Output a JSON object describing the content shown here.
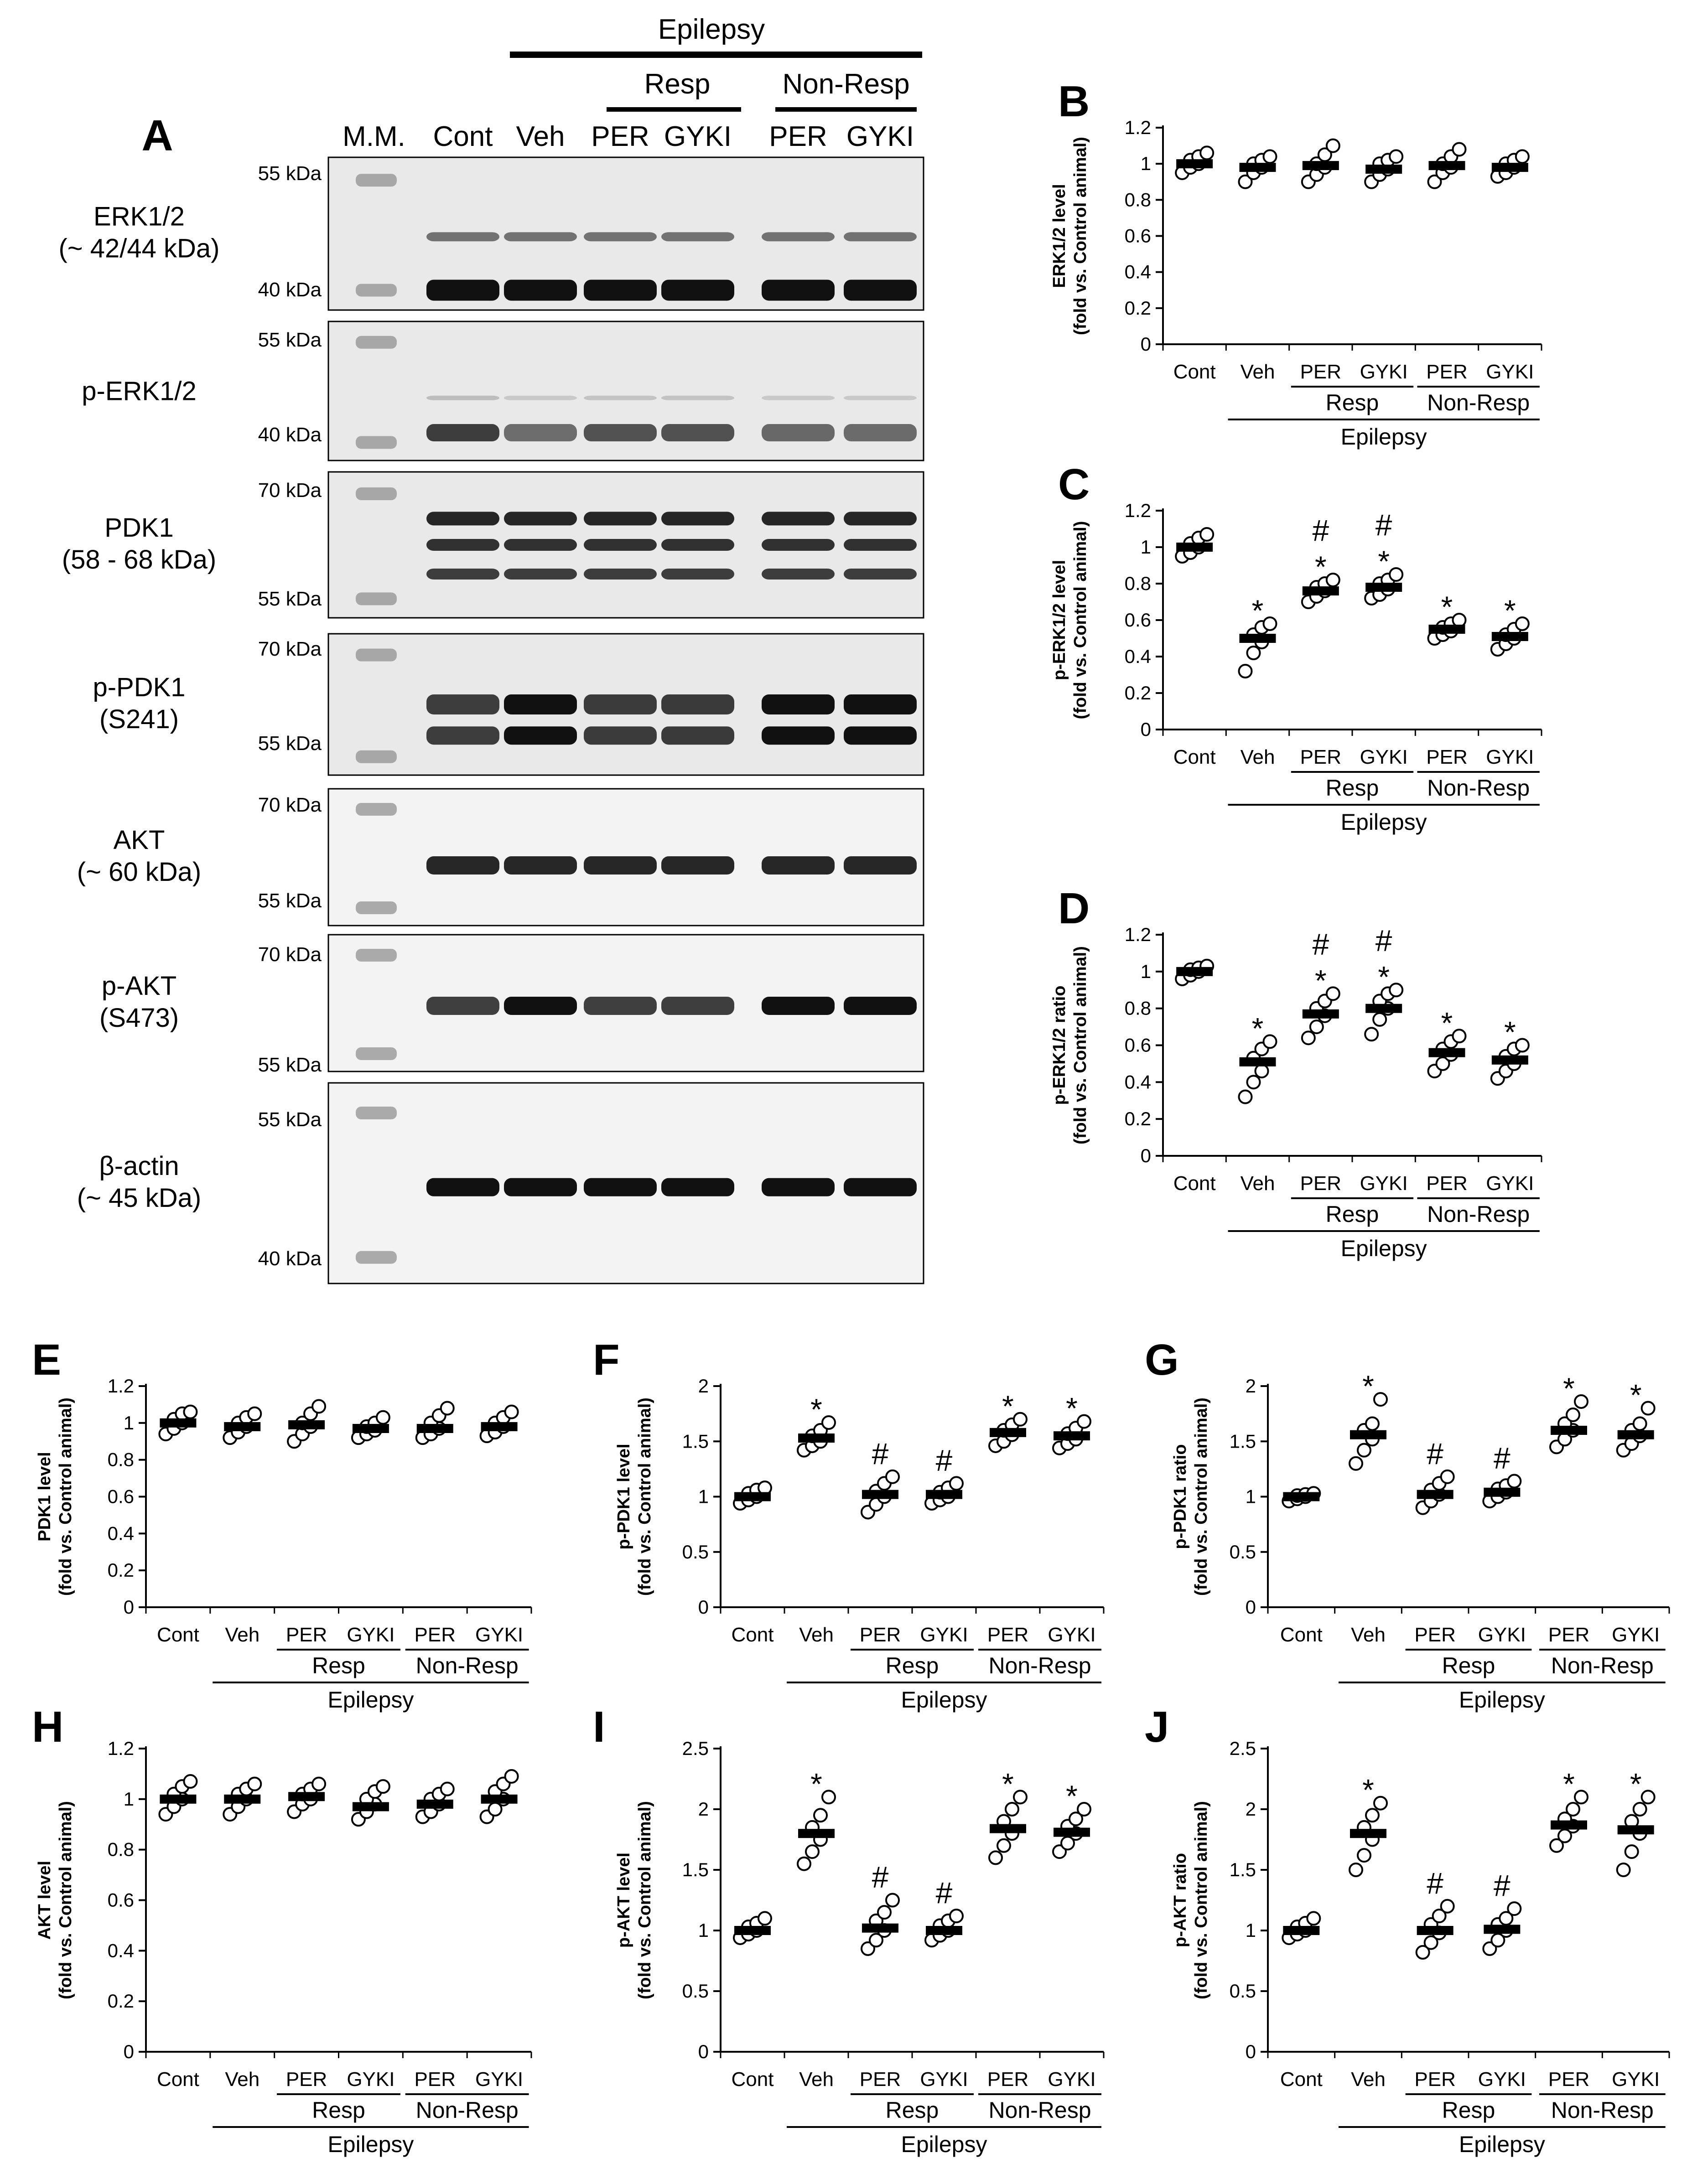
{
  "panel_a": {
    "letter": "A",
    "top_group": "Epilepsy",
    "sub_groups": [
      "Resp",
      "Non-Resp"
    ],
    "lane_labels": [
      "M.M.",
      "Cont",
      "Veh",
      "PER",
      "GYKI",
      "PER",
      "GYKI"
    ],
    "blots": [
      {
        "label": [
          "ERK1/2",
          "(~ 42/44 kDa)"
        ],
        "markers": [
          "55 kDa",
          "40 kDa"
        ]
      },
      {
        "label": [
          "p-ERK1/2"
        ],
        "markers": [
          "55 kDa",
          "40 kDa"
        ]
      },
      {
        "label": [
          "PDK1",
          "(58 - 68 kDa)"
        ],
        "markers": [
          "70 kDa",
          "55 kDa"
        ]
      },
      {
        "label": [
          "p-PDK1",
          "(S241)"
        ],
        "markers": [
          "70 kDa",
          "55 kDa"
        ]
      },
      {
        "label": [
          "AKT",
          "(~ 60 kDa)"
        ],
        "markers": [
          "70 kDa",
          "55 kDa"
        ]
      },
      {
        "label": [
          "p-AKT",
          "(S473)"
        ],
        "markers": [
          "70 kDa",
          "55 kDa"
        ]
      },
      {
        "label": [
          "β-actin",
          "(~ 45 kDa)"
        ],
        "markers": [
          "55 kDa",
          "40 kDa"
        ]
      }
    ],
    "band_intensity": {
      "ERK1/2": [
        1,
        1,
        1,
        1,
        1,
        1
      ],
      "p-ERK1/2": [
        1.0,
        0.5,
        0.78,
        0.79,
        0.55,
        0.52
      ],
      "PDK1": [
        1,
        1,
        1,
        1,
        1,
        1
      ],
      "p-PDK1": [
        1.0,
        1.55,
        1.02,
        1.03,
        1.6,
        1.56
      ],
      "AKT": [
        1,
        1,
        1,
        1,
        1,
        1
      ],
      "p-AKT": [
        1.0,
        1.8,
        1.0,
        1.01,
        1.87,
        1.83
      ],
      "beta-actin": [
        1,
        1,
        1,
        1,
        1,
        1
      ]
    }
  },
  "x_axis": {
    "categories": [
      "Cont",
      "Veh",
      "PER",
      "GYKI",
      "PER",
      "GYKI"
    ],
    "subgroups": [
      "Resp",
      "Non-Resp"
    ],
    "group": "Epilepsy"
  },
  "chart_data": [
    {
      "letter": "B",
      "type": "scatter",
      "ylabel": [
        "ERK1/2 level",
        "(fold vs. Control animal)"
      ],
      "ylim": [
        0,
        1.2
      ],
      "yticks": [
        "0",
        "0.2",
        "0.4",
        "0.6",
        "0.8",
        "1",
        "1.2"
      ],
      "means": [
        1.0,
        0.98,
        0.99,
        0.97,
        0.99,
        0.98
      ],
      "points": [
        [
          0.95,
          0.98,
          1.0,
          1.02,
          1.04,
          1.06
        ],
        [
          0.9,
          0.95,
          0.98,
          1.0,
          1.02,
          1.04
        ],
        [
          0.9,
          0.94,
          0.98,
          1.0,
          1.05,
          1.1
        ],
        [
          0.9,
          0.94,
          0.97,
          1.0,
          1.02,
          1.04
        ],
        [
          0.9,
          0.95,
          0.98,
          1.0,
          1.04,
          1.08
        ],
        [
          0.93,
          0.95,
          0.98,
          1.0,
          1.02,
          1.04
        ]
      ],
      "annotations": [
        "",
        "",
        "",
        "",
        "",
        ""
      ]
    },
    {
      "letter": "C",
      "type": "scatter",
      "ylabel": [
        "p-ERK1/2 level",
        "(fold vs. Control animal)"
      ],
      "ylim": [
        0,
        1.2
      ],
      "yticks": [
        "0",
        "0.2",
        "0.4",
        "0.6",
        "0.8",
        "1",
        "1.2"
      ],
      "means": [
        1.0,
        0.5,
        0.76,
        0.78,
        0.55,
        0.51
      ],
      "points": [
        [
          0.95,
          0.97,
          1.0,
          1.02,
          1.05,
          1.07
        ],
        [
          0.32,
          0.42,
          0.48,
          0.52,
          0.56,
          0.58
        ],
        [
          0.7,
          0.73,
          0.76,
          0.78,
          0.8,
          0.82
        ],
        [
          0.72,
          0.74,
          0.77,
          0.8,
          0.82,
          0.85
        ],
        [
          0.5,
          0.52,
          0.54,
          0.56,
          0.58,
          0.6
        ],
        [
          0.44,
          0.47,
          0.5,
          0.52,
          0.55,
          0.58
        ]
      ],
      "annotations": [
        "",
        "*",
        "#*",
        "#*",
        "*",
        "*"
      ]
    },
    {
      "letter": "D",
      "type": "scatter",
      "ylabel": [
        "p-ERK1/2 ratio",
        "(fold vs. Control animal)"
      ],
      "ylim": [
        0,
        1.2
      ],
      "yticks": [
        "0",
        "0.2",
        "0.4",
        "0.6",
        "0.8",
        "1",
        "1.2"
      ],
      "means": [
        1.0,
        0.51,
        0.77,
        0.8,
        0.56,
        0.52
      ],
      "points": [
        [
          0.96,
          0.98,
          1.0,
          1.01,
          1.02,
          1.03
        ],
        [
          0.32,
          0.4,
          0.46,
          0.53,
          0.58,
          0.62
        ],
        [
          0.64,
          0.7,
          0.76,
          0.8,
          0.84,
          0.88
        ],
        [
          0.66,
          0.74,
          0.8,
          0.84,
          0.88,
          0.9
        ],
        [
          0.46,
          0.5,
          0.55,
          0.58,
          0.62,
          0.65
        ],
        [
          0.42,
          0.46,
          0.5,
          0.54,
          0.58,
          0.6
        ]
      ],
      "annotations": [
        "",
        "*",
        "#*",
        "#*",
        "*",
        "*"
      ]
    },
    {
      "letter": "E",
      "type": "scatter",
      "ylabel": [
        "PDK1 level",
        "(fold vs. Control animal)"
      ],
      "ylim": [
        0,
        1.2
      ],
      "yticks": [
        "0",
        "0.2",
        "0.4",
        "0.6",
        "0.8",
        "1",
        "1.2"
      ],
      "means": [
        1.0,
        0.98,
        0.99,
        0.97,
        0.97,
        0.98
      ],
      "points": [
        [
          0.94,
          0.97,
          1.0,
          1.02,
          1.05,
          1.06
        ],
        [
          0.92,
          0.95,
          0.98,
          1.0,
          1.03,
          1.05
        ],
        [
          0.9,
          0.94,
          0.98,
          1.0,
          1.05,
          1.09
        ],
        [
          0.92,
          0.94,
          0.96,
          0.98,
          1.0,
          1.03
        ],
        [
          0.92,
          0.94,
          0.97,
          1.0,
          1.04,
          1.08
        ],
        [
          0.93,
          0.95,
          0.98,
          1.0,
          1.03,
          1.06
        ]
      ],
      "annotations": [
        "",
        "",
        "",
        "",
        "",
        ""
      ]
    },
    {
      "letter": "F",
      "type": "scatter",
      "ylabel": [
        "p-PDK1 level",
        "(fold vs. Control animal)"
      ],
      "ylim": [
        0,
        2
      ],
      "yticks": [
        "0",
        "0.5",
        "1",
        "1.5",
        "2"
      ],
      "means": [
        1.0,
        1.53,
        1.02,
        1.02,
        1.58,
        1.55
      ],
      "points": [
        [
          0.94,
          0.97,
          1.0,
          1.03,
          1.06,
          1.08
        ],
        [
          1.42,
          1.46,
          1.5,
          1.55,
          1.6,
          1.67
        ],
        [
          0.86,
          0.93,
          1.0,
          1.05,
          1.12,
          1.18
        ],
        [
          0.94,
          0.97,
          1.0,
          1.04,
          1.08,
          1.12
        ],
        [
          1.46,
          1.5,
          1.56,
          1.6,
          1.65,
          1.7
        ],
        [
          1.44,
          1.48,
          1.52,
          1.57,
          1.62,
          1.68
        ]
      ],
      "annotations": [
        "",
        "*",
        "#",
        "#",
        "*",
        "*"
      ]
    },
    {
      "letter": "G",
      "type": "scatter",
      "ylabel": [
        "p-PDK1 ratio",
        "(fold vs. Control animal)"
      ],
      "ylim": [
        0,
        2
      ],
      "yticks": [
        "0",
        "0.5",
        "1",
        "1.5",
        "2"
      ],
      "means": [
        1.0,
        1.56,
        1.02,
        1.04,
        1.6,
        1.56
      ],
      "points": [
        [
          0.96,
          0.98,
          1.0,
          1.01,
          1.02,
          1.03
        ],
        [
          1.3,
          1.42,
          1.52,
          1.6,
          1.66,
          1.88
        ],
        [
          0.9,
          0.96,
          1.02,
          1.06,
          1.12,
          1.18
        ],
        [
          0.96,
          1.0,
          1.04,
          1.07,
          1.1,
          1.14
        ],
        [
          1.45,
          1.52,
          1.6,
          1.66,
          1.74,
          1.86
        ],
        [
          1.42,
          1.48,
          1.55,
          1.6,
          1.66,
          1.8
        ]
      ],
      "annotations": [
        "",
        "*",
        "#",
        "#",
        "*",
        "*"
      ]
    },
    {
      "letter": "H",
      "type": "scatter",
      "ylabel": [
        "AKT level",
        "(fold vs. Control animal)"
      ],
      "ylim": [
        0,
        1.2
      ],
      "yticks": [
        "0",
        "0.2",
        "0.4",
        "0.6",
        "0.8",
        "1",
        "1.2"
      ],
      "means": [
        1.0,
        1.0,
        1.01,
        0.97,
        0.98,
        1.0
      ],
      "points": [
        [
          0.94,
          0.97,
          1.0,
          1.02,
          1.05,
          1.07
        ],
        [
          0.94,
          0.97,
          1.0,
          1.02,
          1.04,
          1.06
        ],
        [
          0.95,
          0.98,
          1.0,
          1.02,
          1.04,
          1.06
        ],
        [
          0.92,
          0.95,
          0.98,
          1.0,
          1.03,
          1.05
        ],
        [
          0.93,
          0.95,
          0.98,
          1.0,
          1.02,
          1.04
        ],
        [
          0.93,
          0.96,
          1.0,
          1.03,
          1.06,
          1.09
        ]
      ],
      "annotations": [
        "",
        "",
        "",
        "",
        "",
        ""
      ]
    },
    {
      "letter": "I",
      "type": "scatter",
      "ylabel": [
        "p-AKT level",
        "(fold vs. Control animal)"
      ],
      "ylim": [
        0,
        2.5
      ],
      "yticks": [
        "0",
        "0.5",
        "1",
        "1.5",
        "2",
        "2.5"
      ],
      "means": [
        1.0,
        1.8,
        1.02,
        1.0,
        1.84,
        1.81
      ],
      "points": [
        [
          0.94,
          0.97,
          1.0,
          1.03,
          1.06,
          1.1
        ],
        [
          1.55,
          1.65,
          1.75,
          1.85,
          1.95,
          2.1
        ],
        [
          0.85,
          0.92,
          1.0,
          1.08,
          1.15,
          1.25
        ],
        [
          0.92,
          0.96,
          1.0,
          1.04,
          1.08,
          1.12
        ],
        [
          1.6,
          1.7,
          1.8,
          1.9,
          2.0,
          2.1
        ],
        [
          1.65,
          1.72,
          1.8,
          1.86,
          1.92,
          2.0
        ]
      ],
      "annotations": [
        "",
        "*",
        "#",
        "#",
        "*",
        "*"
      ]
    },
    {
      "letter": "J",
      "type": "scatter",
      "ylabel": [
        "p-AKT ratio",
        "(fold vs. Control animal)"
      ],
      "ylim": [
        0,
        2.5
      ],
      "yticks": [
        "0",
        "0.5",
        "1",
        "1.5",
        "2",
        "2.5"
      ],
      "means": [
        1.0,
        1.8,
        1.0,
        1.01,
        1.87,
        1.83
      ],
      "points": [
        [
          0.94,
          0.97,
          1.0,
          1.03,
          1.06,
          1.1
        ],
        [
          1.5,
          1.62,
          1.75,
          1.85,
          1.95,
          2.05
        ],
        [
          0.82,
          0.9,
          0.98,
          1.05,
          1.12,
          1.2
        ],
        [
          0.85,
          0.92,
          1.0,
          1.05,
          1.1,
          1.18
        ],
        [
          1.7,
          1.78,
          1.86,
          1.92,
          2.0,
          2.1
        ],
        [
          1.5,
          1.65,
          1.8,
          1.9,
          2.0,
          2.1
        ]
      ],
      "annotations": [
        "",
        "*",
        "#",
        "#",
        "*",
        "*"
      ]
    }
  ]
}
